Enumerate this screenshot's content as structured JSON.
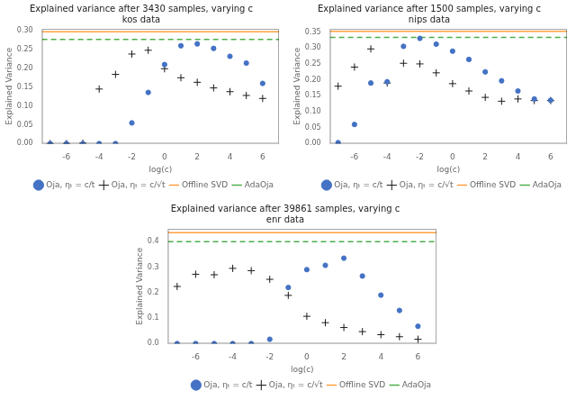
{
  "chart_data": [
    {
      "type": "scatter",
      "title": "Explained variance after 3430 samples, varying c\nkos data",
      "x_label": "log(c)",
      "y_label": "Explained Variance",
      "xlim": [
        -7.5,
        7.0
      ],
      "xticks": [
        -6,
        -4,
        -2,
        0,
        2,
        4,
        6
      ],
      "ylim": [
        0.0,
        0.305
      ],
      "yticks": [
        {
          "value": 0.0,
          "label": "0.00"
        },
        {
          "value": 0.05,
          "label": "0.05"
        },
        {
          "value": 0.1,
          "label": "0.10"
        },
        {
          "value": 0.15,
          "label": "0.15"
        },
        {
          "value": 0.2,
          "label": "0.20"
        },
        {
          "value": 0.25,
          "label": "0.25"
        },
        {
          "value": 0.3,
          "label": "0.30"
        }
      ],
      "grid": false,
      "legend": "lower right",
      "series": [
        {
          "name": "Offline SVD",
          "type": "hline",
          "color": "#ff9f40",
          "line_style": "solid",
          "values": [
            0.297
          ]
        },
        {
          "name": "AdaOja",
          "type": "hline",
          "color": "#4daf4a",
          "line_style": "dashed",
          "values": [
            0.277
          ]
        },
        {
          "name": "Oja, ηₜ = c/t",
          "type": "scatter",
          "color": "#4472c4",
          "marker": "circle",
          "x": [
            -7,
            -6,
            -5,
            -4,
            -3,
            -2,
            -1,
            0,
            1,
            2,
            3,
            4,
            5,
            6
          ],
          "values": [
            0.0,
            0.0,
            0.0,
            0.0,
            0.0,
            0.055,
            0.136,
            0.21,
            0.26,
            0.265,
            0.253,
            0.232,
            0.214,
            0.16
          ]
        },
        {
          "name": "Oja, ηₜ = c/√t",
          "type": "scatter",
          "color": "#1a1a1a",
          "marker": "cross",
          "x": [
            -7,
            -6,
            -5,
            -4,
            -3,
            -2,
            -1,
            0,
            1,
            2,
            3,
            4,
            5,
            6
          ],
          "values": [
            0.0,
            0.0,
            0.001,
            0.145,
            0.184,
            0.238,
            0.248,
            0.199,
            0.175,
            0.163,
            0.148,
            0.138,
            0.128,
            0.12
          ]
        }
      ]
    },
    {
      "type": "scatter",
      "title": "Explained variance after 1500 samples, varying c\nnips data",
      "x_label": "log(c)",
      "y_label": "Explained Variance",
      "xlim": [
        -7.5,
        7.0
      ],
      "xticks": [
        -6,
        -4,
        -2,
        0,
        2,
        4,
        6
      ],
      "ylim": [
        0.0,
        0.36
      ],
      "yticks": [
        {
          "value": 0.0,
          "label": "0.00"
        },
        {
          "value": 0.05,
          "label": "0.05"
        },
        {
          "value": 0.1,
          "label": "0.10"
        },
        {
          "value": 0.15,
          "label": "0.15"
        },
        {
          "value": 0.2,
          "label": "0.20"
        },
        {
          "value": 0.25,
          "label": "0.25"
        },
        {
          "value": 0.3,
          "label": "0.30"
        },
        {
          "value": 0.35,
          "label": "0.35"
        }
      ],
      "grid": false,
      "legend": "lower right",
      "series": [
        {
          "name": "Offline SVD",
          "type": "hline",
          "color": "#ff9f40",
          "line_style": "solid",
          "values": [
            0.352
          ]
        },
        {
          "name": "AdaOja",
          "type": "hline",
          "color": "#4daf4a",
          "line_style": "dashed",
          "values": [
            0.333
          ]
        },
        {
          "name": "Oja, ηₜ = c/t",
          "type": "scatter",
          "color": "#4472c4",
          "marker": "circle",
          "x": [
            -7,
            -6,
            -5,
            -4,
            -3,
            -2,
            -1,
            0,
            1,
            2,
            3,
            4,
            5,
            6
          ],
          "values": [
            0.003,
            0.06,
            0.19,
            0.194,
            0.305,
            0.33,
            0.312,
            0.29,
            0.264,
            0.225,
            0.197,
            0.165,
            0.14,
            0.136
          ]
        },
        {
          "name": "Oja, ηₜ = c/√t",
          "type": "scatter",
          "color": "#1a1a1a",
          "marker": "cross",
          "x": [
            -7,
            -6,
            -5,
            -4,
            -3,
            -2,
            -1,
            0,
            1,
            2,
            3,
            4,
            5,
            6
          ],
          "values": [
            0.18,
            0.24,
            0.297,
            0.19,
            0.252,
            0.25,
            0.222,
            0.188,
            0.165,
            0.145,
            0.133,
            0.14,
            0.135,
            0.135
          ]
        }
      ]
    },
    {
      "type": "scatter",
      "title": "Explained variance after 39861 samples, varying c\nenr data",
      "x_label": "log(c)",
      "y_label": "Explained Variance",
      "xlim": [
        -7.5,
        7.0
      ],
      "xticks": [
        -6,
        -4,
        -2,
        0,
        2,
        4,
        6
      ],
      "ylim": [
        0.0,
        0.45
      ],
      "yticks": [
        {
          "value": 0.0,
          "label": "0.0"
        },
        {
          "value": 0.1,
          "label": "0.1"
        },
        {
          "value": 0.2,
          "label": "0.2"
        },
        {
          "value": 0.3,
          "label": "0.3"
        },
        {
          "value": 0.4,
          "label": "0.4"
        }
      ],
      "grid": false,
      "legend": "lower right",
      "series": [
        {
          "name": "Offline SVD",
          "type": "hline",
          "color": "#ff9f40",
          "line_style": "solid",
          "values": [
            0.435
          ]
        },
        {
          "name": "AdaOja",
          "type": "hline",
          "color": "#4daf4a",
          "line_style": "dashed",
          "values": [
            0.4
          ]
        },
        {
          "name": "Oja, ηₜ = c/t",
          "type": "scatter",
          "color": "#4472c4",
          "marker": "circle",
          "x": [
            -7,
            -6,
            -5,
            -4,
            -3,
            -2,
            -1,
            0,
            1,
            2,
            3,
            4,
            5,
            6
          ],
          "values": [
            0.0,
            0.0,
            0.0,
            0.0,
            0.0,
            0.017,
            0.22,
            0.29,
            0.307,
            0.335,
            0.265,
            0.19,
            0.13,
            0.068
          ]
        },
        {
          "name": "Oja, ηₜ = c/√t",
          "type": "scatter",
          "color": "#1a1a1a",
          "marker": "cross",
          "x": [
            -7,
            -6,
            -5,
            -4,
            -3,
            -2,
            -1,
            0,
            1,
            2,
            3,
            4,
            5,
            6
          ],
          "values": [
            0.224,
            0.272,
            0.27,
            0.295,
            0.286,
            0.252,
            0.189,
            0.107,
            0.082,
            0.063,
            0.047,
            0.035,
            0.027,
            0.017
          ]
        }
      ]
    }
  ]
}
